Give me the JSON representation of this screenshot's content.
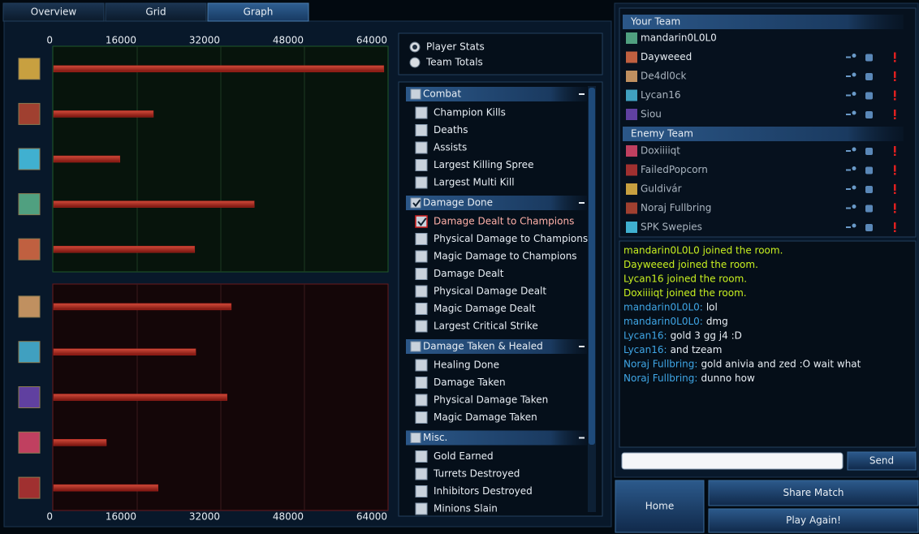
{
  "tabs": {
    "labels": [
      "Overview",
      "Grid",
      "Graph"
    ],
    "active": 2
  },
  "chart_data": [
    {
      "type": "bar",
      "orientation": "horizontal",
      "values": [
        63200,
        19100,
        12700,
        38400,
        27000
      ],
      "color": "#b3261e",
      "xlim": [
        0,
        64000
      ],
      "xticks": [
        0,
        16000,
        32000,
        48000,
        64000
      ],
      "grid": true,
      "tick_position": "top"
    },
    {
      "type": "bar",
      "orientation": "horizontal",
      "values": [
        34000,
        27200,
        33200,
        10100,
        20000
      ],
      "color": "#b3261e",
      "xlim": [
        0,
        64000
      ],
      "xticks": [
        0,
        16000,
        32000,
        48000,
        64000
      ],
      "grid": true,
      "tick_position": "bottom"
    }
  ],
  "view_options": {
    "options": [
      "Player Stats",
      "Team Totals"
    ],
    "selected": 0
  },
  "stats": {
    "groups": [
      {
        "name": "Combat",
        "items": [
          "Champion Kills",
          "Deaths",
          "Assists",
          "Largest Killing Spree",
          "Largest Multi Kill"
        ]
      },
      {
        "name": "Damage Done",
        "items": [
          "Damage Dealt to Champions",
          "Physical Damage to Champions",
          "Magic Damage to Champions",
          "Damage Dealt",
          "Physical Damage Dealt",
          "Magic Damage Dealt",
          "Largest Critical Strike"
        ]
      },
      {
        "name": "Damage Taken & Healed",
        "items": [
          "Healing Done",
          "Damage Taken",
          "Physical Damage Taken",
          "Magic Damage Taken"
        ]
      },
      {
        "name": "Misc.",
        "items": [
          "Gold Earned",
          "Turrets Destroyed",
          "Inhibitors Destroyed",
          "Minions Slain"
        ]
      }
    ],
    "selected": {
      "group": 1,
      "item": 0
    }
  },
  "your_team": {
    "title": "Your Team",
    "players": [
      "mandarin0L0L0",
      "Dayweeed",
      "De4dl0ck",
      "Lycan16",
      "Siou"
    ]
  },
  "enemy_team": {
    "title": "Enemy Team",
    "players": [
      "Doxiiiiqt",
      "FailedPopcorn",
      "Guldivár",
      "Noraj Fullbring",
      "SPK Swepies"
    ]
  },
  "chat": {
    "messages": [
      {
        "text": "mandarin0L0L0 joined the room."
      },
      {
        "text": "Dayweeed joined the room."
      },
      {
        "text": "Lycan16 joined the room."
      },
      {
        "text": "Doxiiiiqt joined the room."
      },
      {
        "sender": "mandarin0L0L0:",
        "text": "lol"
      },
      {
        "sender": "mandarin0L0L0:",
        "text": "dmg"
      },
      {
        "sender": "Lycan16:",
        "text": "gold 3 gg j4 :D"
      },
      {
        "sender": "Lycan16:",
        "text": "and tzeam"
      },
      {
        "sender": "Noraj Fullbring:",
        "text": "gold anivia and zed :O wait what"
      },
      {
        "sender": "Noraj Fullbring:",
        "text": "dunno how"
      }
    ],
    "send_button": "Send"
  },
  "buttons": {
    "home": "Home",
    "share": "Share Match",
    "play_again": "Play Again!"
  }
}
